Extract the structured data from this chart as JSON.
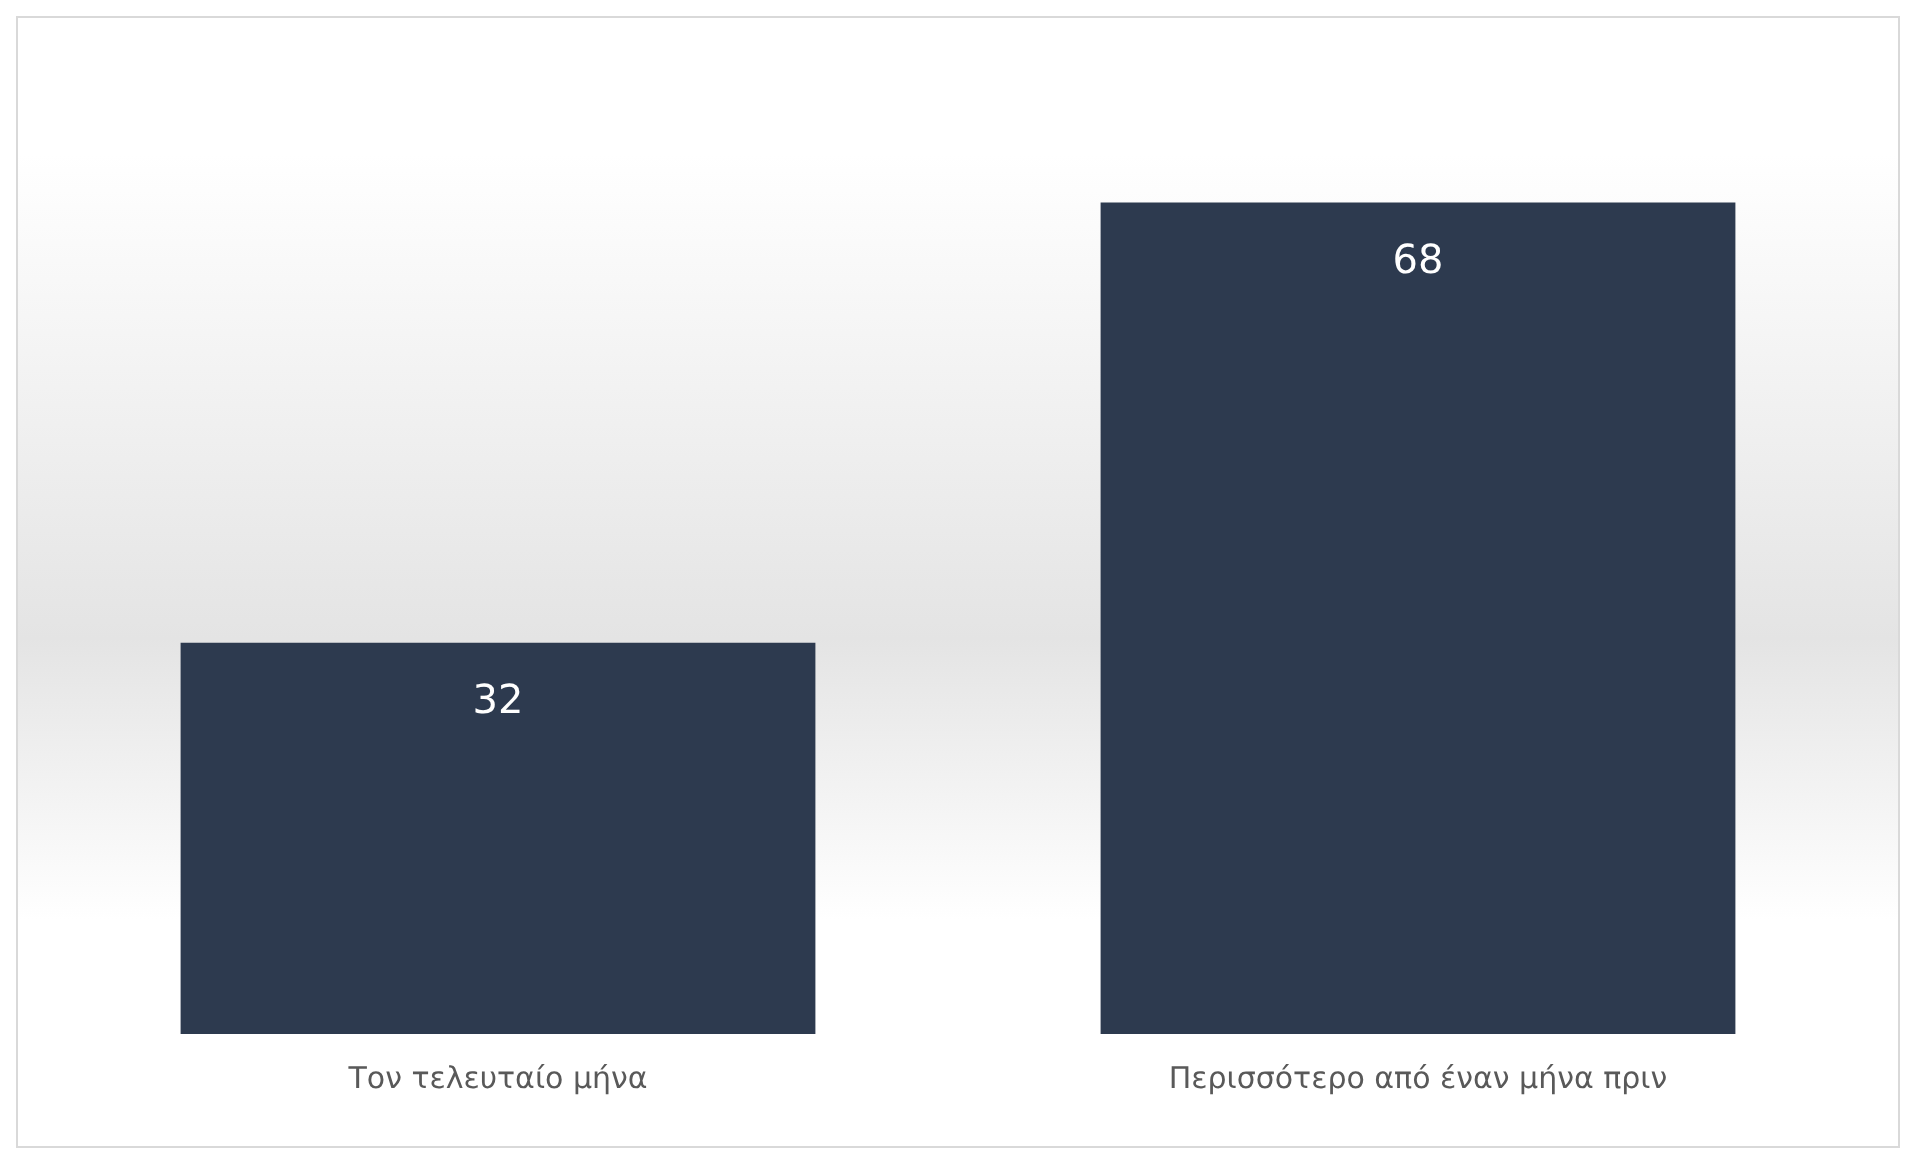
{
  "chart_data": {
    "type": "bar",
    "categories": [
      "Τον τελευταίο μήνα",
      "Περισσότερο από έναν μήνα πριν"
    ],
    "values": [
      32,
      68
    ],
    "color": "#2d3a4f",
    "data_labels": true,
    "grid": false,
    "legend": false
  }
}
